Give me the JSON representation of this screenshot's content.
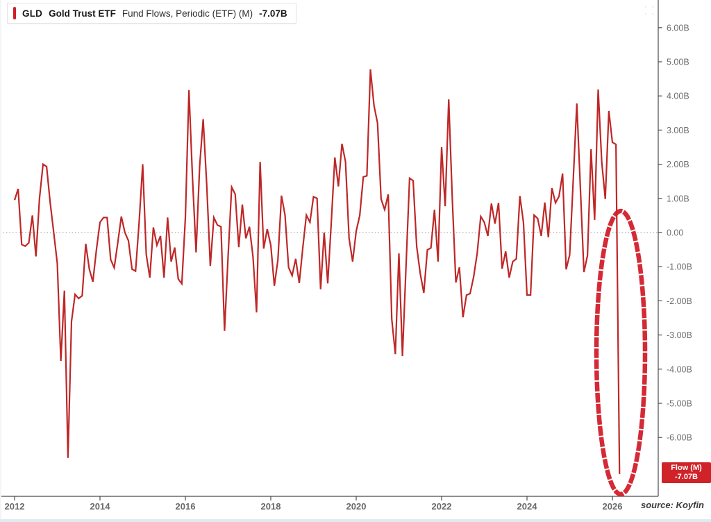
{
  "legend": {
    "ticker": "GLD",
    "name": "Gold Trust ETF",
    "metric": "Fund Flows, Periodic (ETF) (M)",
    "value": "-7.07B"
  },
  "badge": {
    "line1": "Flow (M)",
    "line2": "-7.07B"
  },
  "source": "source: Koyfin",
  "icons": {
    "top_right": "move-icon"
  },
  "colors": {
    "line": "#bf2727",
    "annotation": "#d21f2b",
    "badge_bg": "#cf2329",
    "legend_accent": "#cc2128",
    "axis": "#4a4a4a",
    "zero_line": "#979797",
    "tick_label": "#6e6e6e"
  },
  "chart_data": {
    "type": "line",
    "title": "GLD Gold Trust ETF — Fund Flows, Periodic (ETF) (M)",
    "unit": "USD billions",
    "frequency": "monthly",
    "x_start": "2012-01",
    "x_end": "2026-03",
    "ylim": [
      -7.5,
      6.8
    ],
    "grid": false,
    "zero_line": true,
    "legend_position": "top-left",
    "y_ticks": [
      "6.00B",
      "5.00B",
      "4.00B",
      "3.00B",
      "2.00B",
      "1.00B",
      "0.00",
      "-1.00B",
      "-2.00B",
      "-3.00B",
      "-4.00B",
      "-5.00B",
      "-6.00B"
    ],
    "y_tick_values": [
      6,
      5,
      4,
      3,
      2,
      1,
      0,
      -1,
      -2,
      -3,
      -4,
      -5,
      -6
    ],
    "x_ticks": [
      "2012",
      "2014",
      "2016",
      "2018",
      "2020",
      "2022",
      "2024",
      "2026"
    ],
    "start_year": 2012,
    "annotation": "hand-drawn red ellipse circling the final plunge to -7.07B in early 2026",
    "last_value_label": "-7.07B",
    "values": [
      0.95,
      1.28,
      -0.35,
      -0.4,
      -0.3,
      0.5,
      -0.7,
      1.0,
      2.0,
      1.93,
      0.88,
      0.0,
      -0.9,
      -3.76,
      -1.7,
      -6.6,
      -2.6,
      -1.81,
      -1.93,
      -1.85,
      -0.33,
      -1.07,
      -1.44,
      -0.5,
      0.3,
      0.44,
      0.44,
      -0.79,
      -1.03,
      -0.3,
      0.47,
      0.0,
      -0.24,
      -1.07,
      -1.13,
      0.3,
      2.0,
      -0.64,
      -1.32,
      0.15,
      -0.37,
      -0.1,
      -1.32,
      0.44,
      -0.85,
      -0.44,
      -1.36,
      -1.5,
      0.44,
      4.17,
      1.6,
      -0.58,
      1.93,
      3.32,
      1.39,
      -0.98,
      0.44,
      0.22,
      0.17,
      -2.88,
      -0.7,
      1.33,
      1.12,
      -0.43,
      0.82,
      -0.17,
      0.17,
      -0.71,
      -2.34,
      2.07,
      -0.47,
      0.1,
      -0.37,
      -1.56,
      -0.8,
      1.08,
      0.51,
      -1.02,
      -1.26,
      -0.77,
      -1.48,
      -0.44,
      0.51,
      0.3,
      1.05,
      1.0,
      -1.66,
      0.0,
      -1.49,
      0.3,
      2.2,
      1.35,
      2.6,
      2.07,
      -0.17,
      -0.85,
      0.04,
      0.5,
      1.63,
      1.66,
      4.78,
      3.72,
      3.2,
      0.98,
      0.67,
      1.12,
      -2.54,
      -3.56,
      -0.61,
      -3.62,
      -1.0,
      1.59,
      1.52,
      -0.41,
      -1.2,
      -1.77,
      -0.51,
      -0.45,
      0.67,
      -0.85,
      2.5,
      0.77,
      3.9,
      1.0,
      -1.46,
      -1.02,
      -2.48,
      -1.83,
      -1.79,
      -1.3,
      -0.61,
      0.47,
      0.3,
      -0.1,
      0.85,
      0.26,
      0.87,
      -1.06,
      -0.55,
      -1.32,
      -0.85,
      -0.77,
      1.07,
      0.3,
      -1.83,
      -1.83,
      0.51,
      0.41,
      -0.1,
      0.88,
      -0.14,
      1.3,
      0.87,
      1.06,
      1.73,
      -1.08,
      -0.65,
      1.56,
      3.78,
      1.3,
      -1.16,
      -0.67,
      2.44,
      0.37,
      4.19,
      2.07,
      0.98,
      3.56,
      2.64,
      2.58,
      -7.07
    ]
  }
}
